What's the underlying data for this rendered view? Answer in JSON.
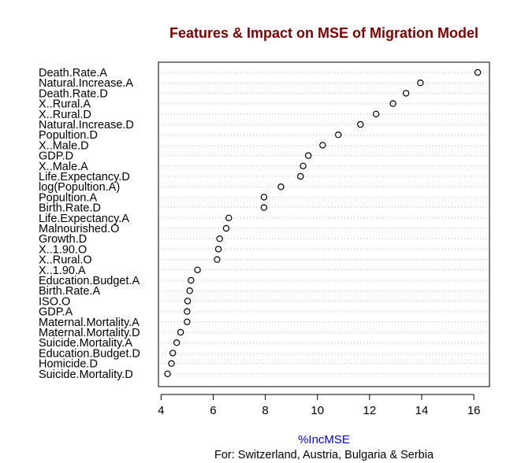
{
  "chart_data": {
    "type": "scatter",
    "title": "Features & Impact on MSE of Migration Model",
    "xlabel": "%IncMSE",
    "subtitle": "For: Switzerland, Austria, Bulgaria & Serbia",
    "xlim": [
      3.9,
      16.6
    ],
    "xticks": [
      4,
      6,
      8,
      10,
      12,
      14,
      16
    ],
    "grid": "horizontal-dotted",
    "legend": "none",
    "colors": {
      "title": "#800000",
      "xlabel": "#0000ff",
      "points": "#000000",
      "grid": "#bebebe"
    },
    "categories": [
      "Death.Rate.A",
      "Natural.Increase.A",
      "Death.Rate.D",
      "X..Rural.A",
      "X..Rural.D",
      "Natural.Increase.D",
      "Popultion.D",
      "X..Male.D",
      "GDP.D",
      "X..Male.A",
      "Life.Expectancy.D",
      "log(Popultion.A)",
      "Popultion.A",
      "Birth.Rate.D",
      "Life.Expectancy.A",
      "Malnourished.O",
      "Growth.D",
      "X..1.90.O",
      "X..Rural.O",
      "X..1.90.A",
      "Education.Budget.A",
      "Birth.Rate.A",
      "ISO.O",
      "GDP.A",
      "Maternal.Mortality.A",
      "Maternal.Mortality.D",
      "Suicide.Mortality.A",
      "Education.Budget.D",
      "Homicide.D",
      "Suicide.Mortality.D"
    ],
    "values": [
      16.15,
      13.95,
      13.4,
      12.9,
      12.25,
      11.65,
      10.8,
      10.2,
      9.65,
      9.45,
      9.35,
      8.6,
      7.95,
      7.95,
      6.6,
      6.5,
      6.25,
      6.2,
      6.15,
      5.4,
      5.15,
      5.1,
      5.02,
      5.0,
      5.0,
      4.75,
      4.6,
      4.45,
      4.4,
      4.25
    ]
  }
}
